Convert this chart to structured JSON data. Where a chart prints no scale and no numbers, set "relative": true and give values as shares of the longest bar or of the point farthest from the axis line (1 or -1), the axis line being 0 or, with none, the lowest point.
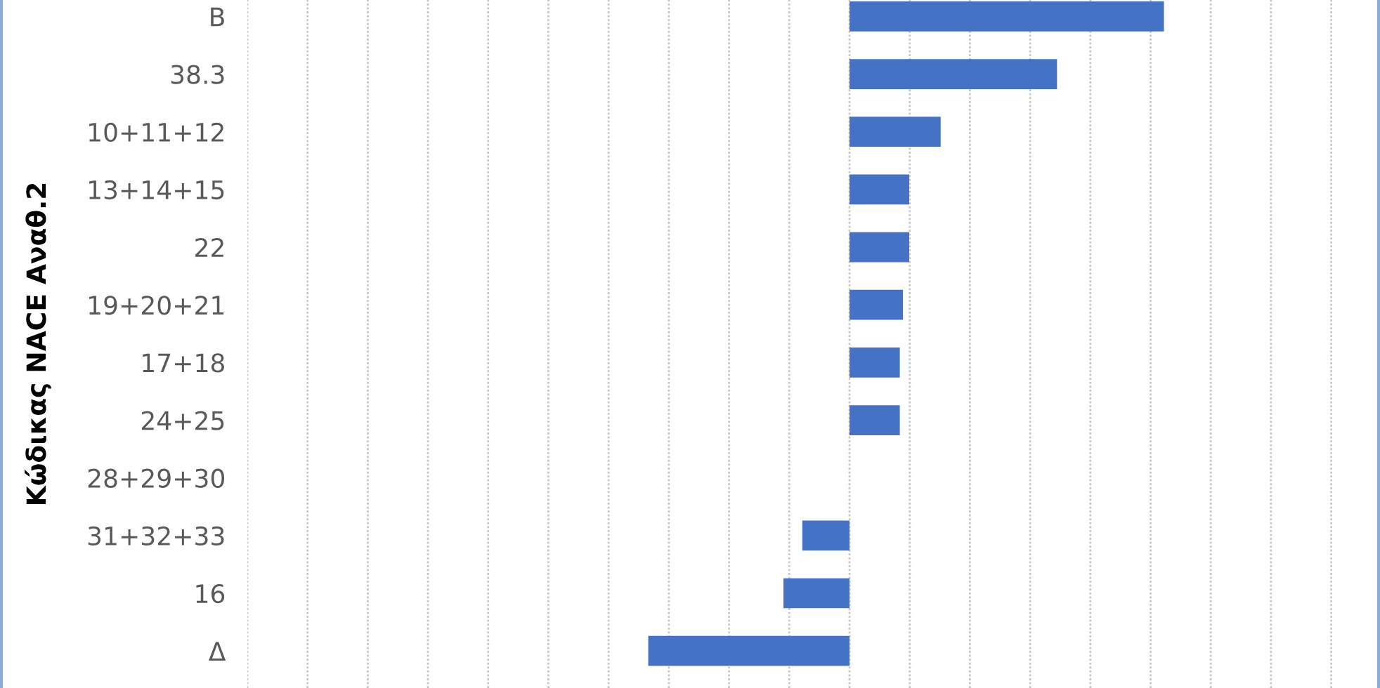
{
  "chart_data": {
    "type": "bar",
    "orientation": "horizontal",
    "relative": true,
    "ylabel": "Κώδικας NACE Αναθ.2",
    "categories": [
      "Β",
      "38.3",
      "10+11+12",
      "13+14+15",
      "22",
      "19+20+21",
      "17+18",
      "24+25",
      "28+29+30",
      "31+32+33",
      "16",
      "Δ"
    ],
    "values": [
      1,
      0.66,
      0.29,
      0.19,
      0.19,
      0.17,
      0.16,
      0.16,
      0,
      -0.15,
      -0.21,
      -0.64
    ],
    "color": "#4472c4",
    "grid": "x"
  }
}
